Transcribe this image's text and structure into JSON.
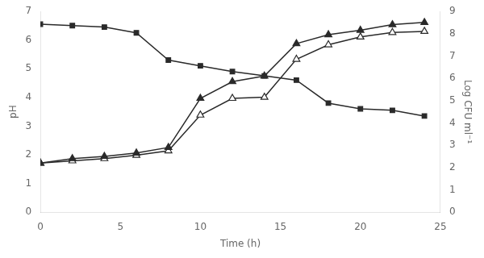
{
  "chart_data": {
    "type": "line",
    "xlabel": "Time (h)",
    "ylabel": "pH",
    "y2label": "Log CFU ml⁻¹",
    "xlim": [
      0,
      25
    ],
    "xticks": [
      0,
      5,
      10,
      15,
      20,
      25
    ],
    "ylim": [
      0,
      7
    ],
    "yticks": [
      0,
      1,
      2,
      3,
      4,
      5,
      6,
      7
    ],
    "y2lim": [
      0,
      9
    ],
    "y2ticks": [
      0,
      1,
      2,
      3,
      4,
      5,
      6,
      7,
      8,
      9
    ],
    "grid": false,
    "x": [
      0,
      2,
      4,
      6,
      8,
      10,
      12,
      14,
      16,
      18,
      20,
      22,
      24
    ],
    "series": [
      {
        "values": [
          6.55,
          6.5,
          6.45,
          6.25,
          5.3,
          5.1,
          4.9,
          4.75,
          4.6,
          3.8,
          3.6,
          3.55,
          3.35
        ],
        "color": "#2a2a2a",
        "marker": "square"
      },
      {
        "values": [
          2.2,
          2.4,
          2.5,
          2.65,
          2.9,
          5.1,
          5.85,
          6.1,
          7.55,
          7.95,
          8.15,
          8.4,
          8.5
        ],
        "color": "#2a2a2a",
        "marker": "triangle",
        "axis": "y2"
      },
      {
        "values": [
          2.2,
          2.3,
          2.4,
          2.55,
          2.75,
          4.35,
          5.1,
          5.15,
          6.85,
          7.5,
          7.85,
          8.05,
          8.1
        ],
        "color": "#2a2a2a",
        "marker": "open_triangle",
        "axis": "y2"
      }
    ]
  }
}
